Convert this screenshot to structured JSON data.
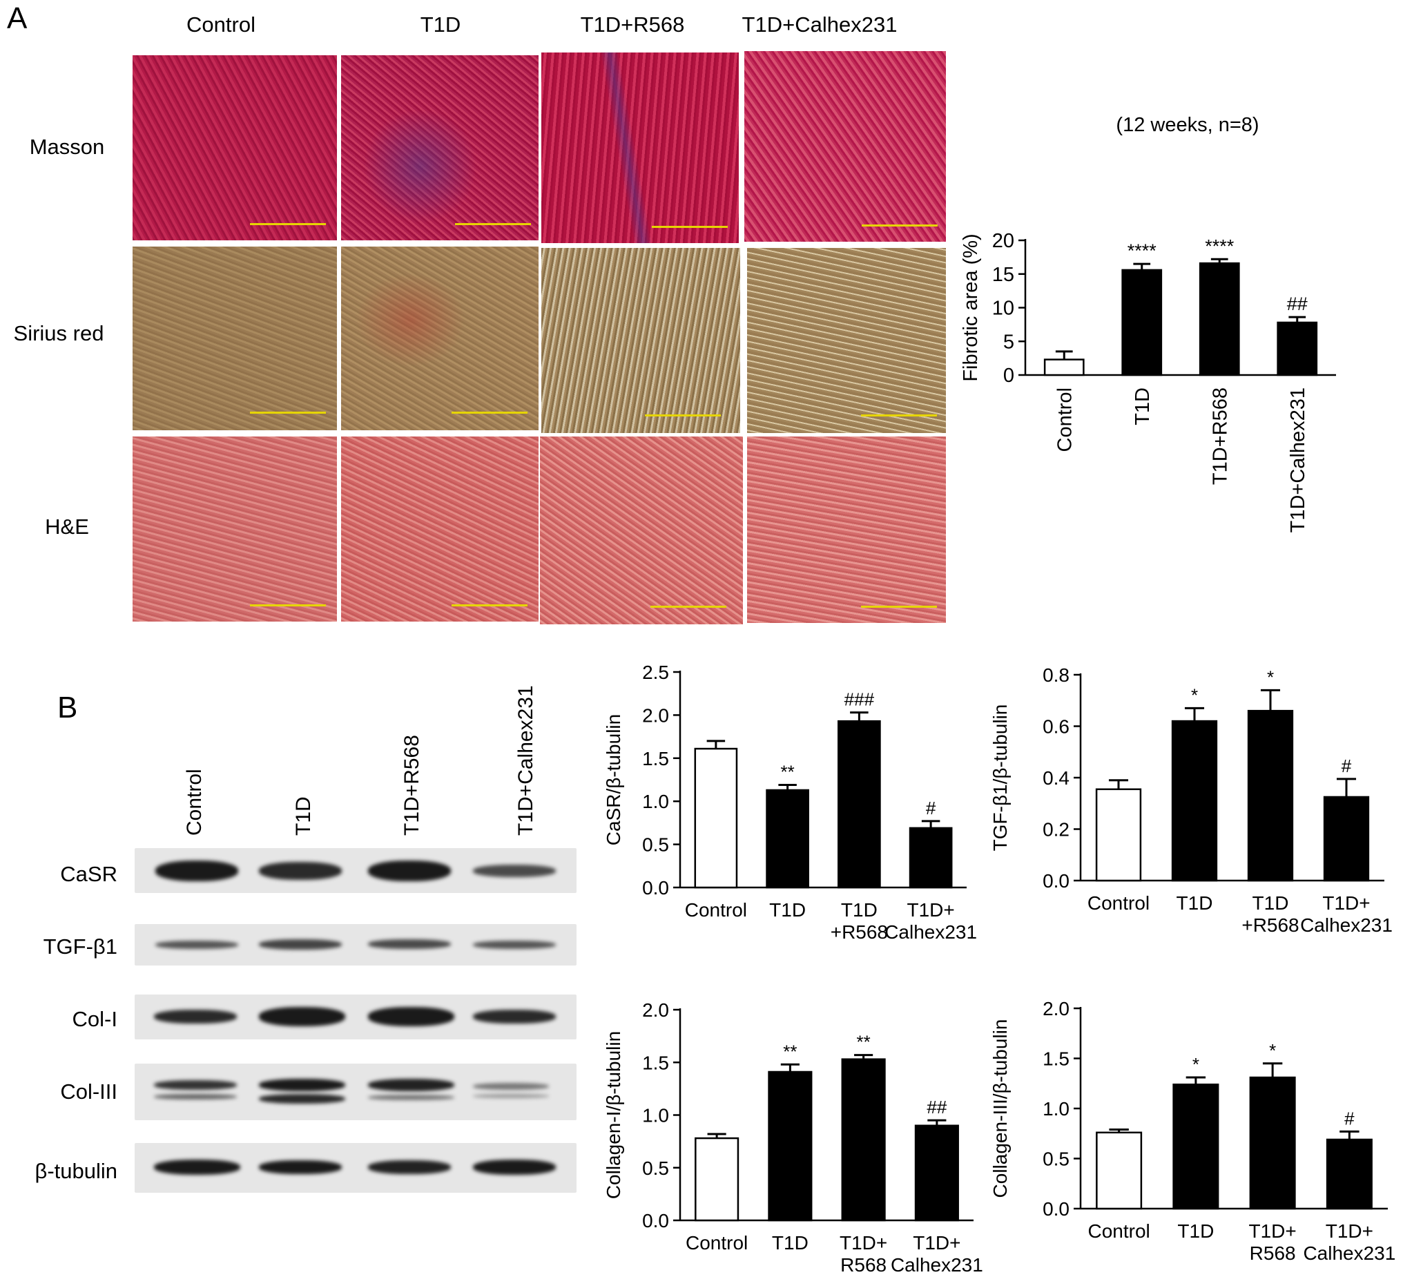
{
  "panel_a": {
    "letter": "A",
    "groups": [
      "Control",
      "T1D",
      "T1D+R568",
      "T1D+Calhex231"
    ],
    "stains": [
      "Masson",
      "Sirius red",
      "H&E"
    ]
  },
  "panel_b": {
    "letter": "B",
    "lanes": [
      "Control",
      "T1D",
      "T1D+R568",
      "T1D+Calhex231"
    ],
    "proteins": [
      "CaSR",
      "TGF-β1",
      "Col-I",
      "Col-III",
      "β-tubulin"
    ]
  },
  "chart_data": [
    {
      "id": "fibrotic",
      "type": "bar",
      "title": "(12 weeks, n=8)",
      "ylabel": "Fibrotic area (%)",
      "ylim": [
        0,
        20
      ],
      "yticks": [
        "0",
        "5",
        "10",
        "15",
        "20"
      ],
      "categories": [
        "Control",
        "T1D",
        "T1D+R568",
        "T1D+Calhex231"
      ],
      "values": [
        2.3,
        15.6,
        16.6,
        7.8
      ],
      "errors": [
        1.2,
        0.9,
        0.6,
        0.8
      ],
      "annotations": [
        "",
        "****",
        "****",
        "##"
      ],
      "fills": [
        "#ffffff",
        "#000000",
        "#000000",
        "#000000"
      ]
    },
    {
      "id": "casr",
      "type": "bar",
      "ylabel": "CaSR/β-tubulin",
      "ylim": [
        0,
        2.5
      ],
      "yticks": [
        "0.0",
        "0.5",
        "1.0",
        "1.5",
        "2.0",
        "2.5"
      ],
      "categories": [
        "Control",
        "T1D",
        "T1D\n+R568",
        "T1D+\nCalhex231"
      ],
      "values": [
        1.61,
        1.13,
        1.93,
        0.69
      ],
      "errors": [
        0.09,
        0.06,
        0.1,
        0.08
      ],
      "annotations": [
        "",
        "**",
        "###",
        "#"
      ],
      "fills": [
        "#ffffff",
        "#000000",
        "#000000",
        "#000000"
      ]
    },
    {
      "id": "tgf",
      "type": "bar",
      "ylabel": "TGF-β1/β-tubulin",
      "ylim": [
        0,
        0.8
      ],
      "yticks": [
        "0.0",
        "0.2",
        "0.4",
        "0.6",
        "0.8"
      ],
      "categories": [
        "Control",
        "T1D",
        "T1D\n+R568",
        "T1D+\nCalhex231"
      ],
      "values": [
        0.355,
        0.62,
        0.66,
        0.325
      ],
      "errors": [
        0.035,
        0.05,
        0.08,
        0.07
      ],
      "annotations": [
        "",
        "*",
        "*",
        "#"
      ],
      "fills": [
        "#ffffff",
        "#000000",
        "#000000",
        "#000000"
      ]
    },
    {
      "id": "col1",
      "type": "bar",
      "ylabel": "Collagen-I/β-tubulin",
      "ylim": [
        0,
        2.0
      ],
      "yticks": [
        "0.0",
        "0.5",
        "1.0",
        "1.5",
        "2.0"
      ],
      "categories": [
        "Control",
        "T1D",
        "T1D+\nR568",
        "T1D+\nCalhex231"
      ],
      "values": [
        0.78,
        1.41,
        1.53,
        0.9
      ],
      "errors": [
        0.04,
        0.07,
        0.04,
        0.05
      ],
      "annotations": [
        "",
        "**",
        "**",
        "##"
      ],
      "fills": [
        "#ffffff",
        "#000000",
        "#000000",
        "#000000"
      ]
    },
    {
      "id": "col3",
      "type": "bar",
      "ylabel": "Collagen-III/β-tubulin",
      "ylim": [
        0,
        2.0
      ],
      "yticks": [
        "0.0",
        "0.5",
        "1.0",
        "1.5",
        "2.0"
      ],
      "categories": [
        "Control",
        "T1D",
        "T1D+\nR568",
        "T1D+\nCalhex231"
      ],
      "values": [
        0.76,
        1.24,
        1.31,
        0.69
      ],
      "errors": [
        0.03,
        0.07,
        0.14,
        0.08
      ],
      "annotations": [
        "",
        "*",
        "*",
        "#"
      ],
      "fills": [
        "#ffffff",
        "#000000",
        "#000000",
        "#000000"
      ]
    }
  ]
}
